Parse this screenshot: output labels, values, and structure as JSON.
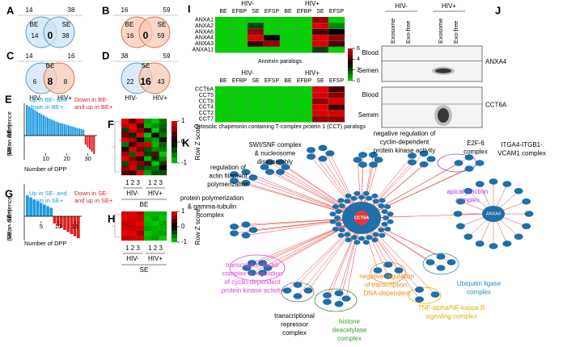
{
  "venns": [
    {
      "label": "A",
      "top": [
        14,
        38
      ],
      "sets": [
        "BE",
        "SE"
      ],
      "regions": [
        14,
        0,
        38
      ],
      "colors": [
        "#cfe3f5",
        "#cfe3f5"
      ],
      "strokes": [
        "#5b9bd5",
        "#5b9bd5"
      ]
    },
    {
      "label": "B",
      "top": [
        16,
        59
      ],
      "sets": [
        "BE",
        "SE"
      ],
      "regions": [
        16,
        0,
        59
      ],
      "colors": [
        "#f8c9b5",
        "#f8c9b5"
      ],
      "strokes": [
        "#e0734f",
        "#e0734f"
      ]
    },
    {
      "label": "C",
      "top": [
        14,
        16
      ],
      "title": "BE",
      "sets": [
        "HIV-",
        "HIV+"
      ],
      "regions": [
        6,
        8,
        8
      ],
      "colors": [
        "#cfe3f5",
        "#f8c9b5"
      ],
      "strokes": [
        "#5b9bd5",
        "#e0734f"
      ]
    },
    {
      "label": "D",
      "top": [
        38,
        59
      ],
      "title": "SE",
      "sets": [
        "HIV-",
        "HIV+"
      ],
      "regions": [
        22,
        16,
        43
      ],
      "colors": [
        "#cfe3f5",
        "#f8c9b5"
      ],
      "strokes": [
        "#5b9bd5",
        "#e0734f"
      ]
    }
  ],
  "bars": [
    {
      "label": "E",
      "up_text": [
        "Up in BE- and",
        "down in BE+"
      ],
      "down_text": [
        "Down in BE-",
        "and up in BE+"
      ],
      "ylabel": [
        "Mean difference",
        "(BE⁻ - BE⁺)"
      ],
      "xlabel": "Number of DPP",
      "xticks": [
        10,
        20,
        30
      ],
      "values": [
        1.0,
        0.95,
        0.9,
        0.86,
        0.82,
        0.78,
        0.74,
        0.7,
        0.66,
        0.62,
        0.58,
        0.55,
        0.52,
        0.49,
        0.46,
        0.43,
        0.41,
        0.39,
        0.37,
        0.35,
        0.33,
        0.31,
        0.29,
        0.27,
        0.25,
        0.23,
        0.21,
        0.19,
        -0.3,
        -0.38,
        -0.45,
        -0.52,
        -0.6
      ]
    },
    {
      "label": "G",
      "up_text": [
        "Up in SE- and",
        "down in SE+"
      ],
      "down_text": [
        "Down in SE-",
        "and up in SE+"
      ],
      "ylabel": [
        "Mean difference",
        "(SE⁻ - SE⁺)"
      ],
      "xlabel": "Number of DPP",
      "xticks": [
        5,
        10,
        15
      ],
      "values": [
        1.0,
        0.9,
        0.8,
        0.72,
        0.64,
        0.56,
        0.48,
        0.4,
        -0.35,
        -0.45,
        -0.55,
        -0.65,
        -0.75,
        -0.85,
        -0.95,
        -1.05
      ]
    }
  ],
  "zmaps": [
    {
      "label": "F",
      "scale_ticks": [
        1,
        0,
        -1
      ],
      "scale_label": "Row Z score",
      "reps": [
        "1 2 3",
        "1 2 3"
      ],
      "groups": [
        "HIV-",
        "HIV+"
      ],
      "tissue": "BE",
      "values": [
        [
          1.1,
          0.4,
          0.9,
          -0.8,
          -1.0,
          -0.6
        ],
        [
          0.8,
          1.0,
          0.3,
          -0.9,
          -0.7,
          -0.5
        ],
        [
          -0.3,
          0.9,
          0.6,
          0.2,
          -1.1,
          -0.4
        ],
        [
          0.5,
          -0.2,
          1.0,
          -1.0,
          0.1,
          -0.6
        ],
        [
          0.9,
          0.7,
          -0.1,
          -0.6,
          -0.8,
          0.0
        ],
        [
          -0.6,
          0.3,
          0.8,
          0.9,
          -0.9,
          -0.5
        ],
        [
          0.2,
          1.0,
          0.5,
          -0.4,
          -0.7,
          -0.6
        ],
        [
          0.7,
          -0.5,
          0.9,
          -0.3,
          0.4,
          -1.1
        ],
        [
          1.0,
          0.6,
          0.2,
          -0.9,
          -0.2,
          -0.7
        ],
        [
          -0.4,
          0.8,
          0.6,
          0.3,
          -1.0,
          -0.3
        ],
        [
          0.6,
          0.9,
          -0.3,
          -0.5,
          -0.6,
          0.1
        ],
        [
          0.4,
          0.2,
          1.0,
          -0.8,
          -0.4,
          -0.4
        ]
      ]
    },
    {
      "label": "H",
      "scale_ticks": [
        1,
        0,
        -1
      ],
      "scale_label": "Row Z score",
      "reps": [
        "1 2 3",
        "1 2 3"
      ],
      "groups": [
        "HIV-",
        "HIV+"
      ],
      "tissue": "SE",
      "values": [
        [
          0.9,
          1.0,
          0.8,
          -0.9,
          -0.9,
          -0.9
        ],
        [
          1.0,
          0.9,
          0.9,
          -1.0,
          -0.8,
          -1.0
        ],
        [
          0.8,
          0.9,
          1.0,
          -0.9,
          -1.0,
          -0.8
        ],
        [
          0.9,
          0.8,
          0.9,
          -0.8,
          -0.9,
          -0.9
        ],
        [
          1.0,
          1.0,
          0.7,
          -1.0,
          -0.9,
          -0.8
        ],
        [
          0.8,
          0.9,
          0.9,
          -0.9,
          -0.8,
          -1.0
        ]
      ]
    }
  ],
  "paralogs": {
    "label": "I",
    "scale_ticks": [
      6,
      4,
      2,
      0
    ],
    "blocks": [
      {
        "groups": [
          "HIV-",
          "HIV+"
        ],
        "columns": [
          "BE",
          "EFBP",
          "SE",
          "EFSP",
          "BE",
          "EFBP",
          "SE",
          "EFSP"
        ],
        "rows": [
          "ANXA1",
          "ANXA2",
          "ANXA6",
          "ANXA4",
          "ANXA3",
          "ANXA11"
        ],
        "caption": "Annexin paralogs",
        "values": [
          [
            0,
            0,
            0,
            0,
            0,
            0,
            5,
            0
          ],
          [
            0,
            0,
            2,
            0,
            0,
            0,
            6,
            1
          ],
          [
            0,
            0,
            5,
            0,
            0,
            0,
            4,
            3
          ],
          [
            0,
            0,
            6,
            3,
            0,
            0,
            6,
            5
          ],
          [
            0,
            0,
            4,
            5,
            0,
            0,
            6,
            4
          ],
          [
            0,
            0,
            0,
            0,
            0,
            0,
            2,
            0
          ]
        ]
      },
      {
        "groups": [
          "HIV-",
          "HIV+"
        ],
        "columns": [
          "BE",
          "EFBP",
          "SE",
          "EFSP",
          "BE",
          "EFBP",
          "SE",
          "EFSP"
        ],
        "rows": [
          "CCT6A",
          "CCT5",
          "CCT8",
          "CCT4",
          "CCT2",
          "CCT7"
        ],
        "caption": "Cytosolic chaperonin containing T-complex protein 1 (CCT) paralogs",
        "values": [
          [
            0,
            0,
            0,
            0,
            0,
            0,
            6,
            4
          ],
          [
            0,
            0,
            0,
            0,
            0,
            0,
            6,
            5
          ],
          [
            0,
            0,
            0,
            0,
            0,
            0,
            5,
            6
          ],
          [
            0,
            0,
            0,
            0,
            0,
            0,
            6,
            4
          ],
          [
            0,
            0,
            0,
            0,
            0,
            0,
            6,
            6
          ],
          [
            0,
            0,
            0,
            0,
            0,
            0,
            5,
            5
          ]
        ]
      }
    ]
  },
  "blots": {
    "label": "J",
    "groups": [
      "HIV-",
      "HIV+"
    ],
    "columns": [
      "Exosome",
      "Exo-free",
      "Exosome",
      "Exo-free"
    ],
    "rows": [
      "Blood",
      "Semen"
    ],
    "proteins": [
      "ANXA4",
      "CCT6A"
    ]
  },
  "network": {
    "label": "K",
    "hubs": [
      "CCT6A",
      "ANXA4"
    ],
    "terms": [
      {
        "lines": [
          "SWI/SNF complex",
          "& nucleosome",
          "disassembly"
        ],
        "color": "#000000"
      },
      {
        "lines": [
          "negative regulation of",
          "cyclin-dependent",
          "protein kinase activity"
        ],
        "color": "#000000"
      },
      {
        "lines": [
          "E2F-6",
          "complex"
        ],
        "color": "#000000"
      },
      {
        "lines": [
          "ITGA4-ITGB1-",
          "VCAM1 complex"
        ],
        "color": "#000000"
      },
      {
        "lines": [
          "apical junction",
          "complex"
        ],
        "color": "#a63fd6"
      },
      {
        "lines": [
          "regulation of",
          "actin filament",
          "polymerization"
        ],
        "color": "#000000"
      },
      {
        "lines": [
          "protein polymerization",
          "& gamma-tubulin",
          "complex"
        ],
        "color": "#000000"
      },
      {
        "lines": [
          "transcription factor",
          "complex & regulation",
          "of cyclin-dependent",
          "protein kinase activity"
        ],
        "color": "#e040d8"
      },
      {
        "lines": [
          "negative regulation",
          "of transcription,",
          "DNA-dependent"
        ],
        "color": "#ef8a1a"
      },
      {
        "lines": [
          "Ubiquitin ligase",
          "complex"
        ],
        "color": "#2f86c8"
      },
      {
        "lines": [
          "transcriptional",
          "repressor",
          "complex"
        ],
        "color": "#000000"
      },
      {
        "lines": [
          "histone",
          "deacetylase",
          "complex"
        ],
        "color": "#3b9b2e"
      },
      {
        "lines": [
          "TNF-alpha/NF-kappa B",
          "signaling complex"
        ],
        "color": "#e0b000"
      }
    ]
  }
}
